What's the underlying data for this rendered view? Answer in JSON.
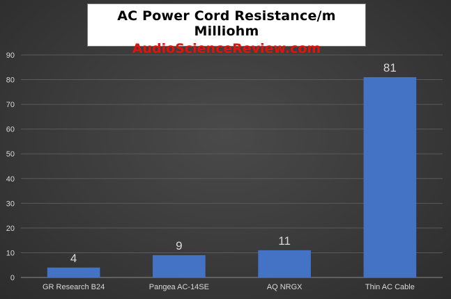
{
  "title": {
    "main": "AC Power Cord  Resistance/m  Milliohm",
    "sub": "AudioScienceReview.com"
  },
  "colors": {
    "bar": "#4472c4",
    "grid": "#5a5a5a",
    "text": "#d9d9d9",
    "subtitle": "#e3120b"
  },
  "chart_data": {
    "type": "bar",
    "title": "AC Power Cord  Resistance/m  Milliohm",
    "subtitle": "AudioScienceReview.com",
    "categories": [
      "GR Research B24",
      "Pangea AC-14SE",
      "AQ NRGX",
      "Thin AC Cable"
    ],
    "values": [
      4,
      9,
      11,
      81
    ],
    "data_labels": [
      "4",
      "9",
      "11",
      "81"
    ],
    "ylim": [
      0,
      90
    ],
    "yticks": [
      0,
      10,
      20,
      30,
      40,
      50,
      60,
      70,
      80,
      90
    ],
    "xlabel": "",
    "ylabel": "",
    "grid": true,
    "legend": "none"
  }
}
